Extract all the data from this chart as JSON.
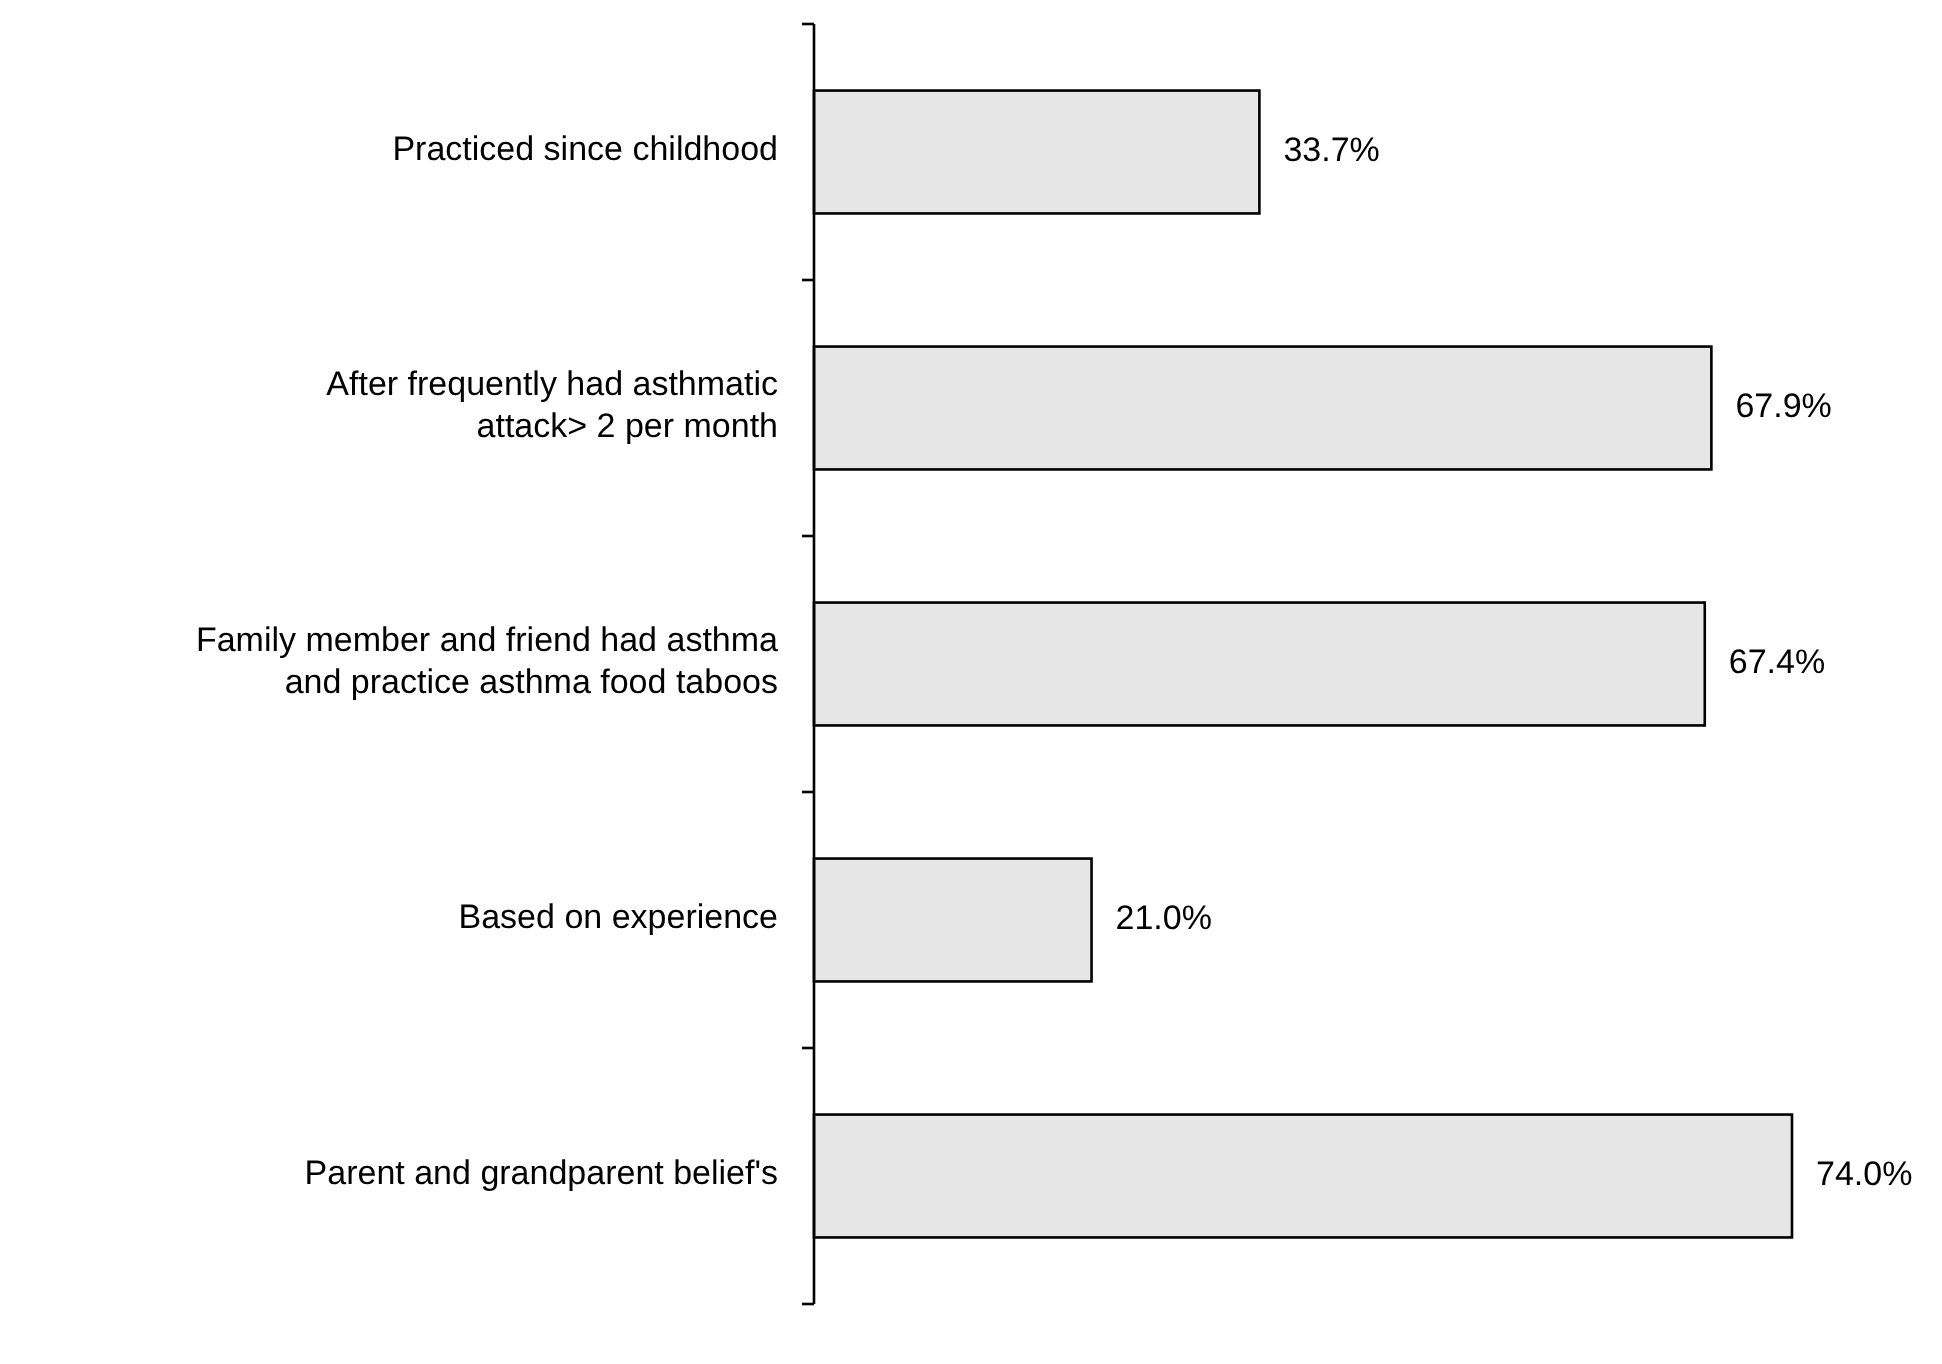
{
  "chart_data": {
    "type": "bar",
    "orientation": "horizontal",
    "categories": [
      "Practiced since childhood",
      "After frequently had asthmatic\nattack> 2 per month",
      "Family member and friend had asthma\nand practice asthma food taboos",
      "Based on experience",
      "Parent and grandparent belief's"
    ],
    "values": [
      33.7,
      67.9,
      67.4,
      21.0,
      74.0
    ],
    "value_labels": [
      "33.7%",
      "67.9%",
      "67.4%",
      "21.0%",
      "74.0%"
    ],
    "color": "#e6e6e6"
  }
}
